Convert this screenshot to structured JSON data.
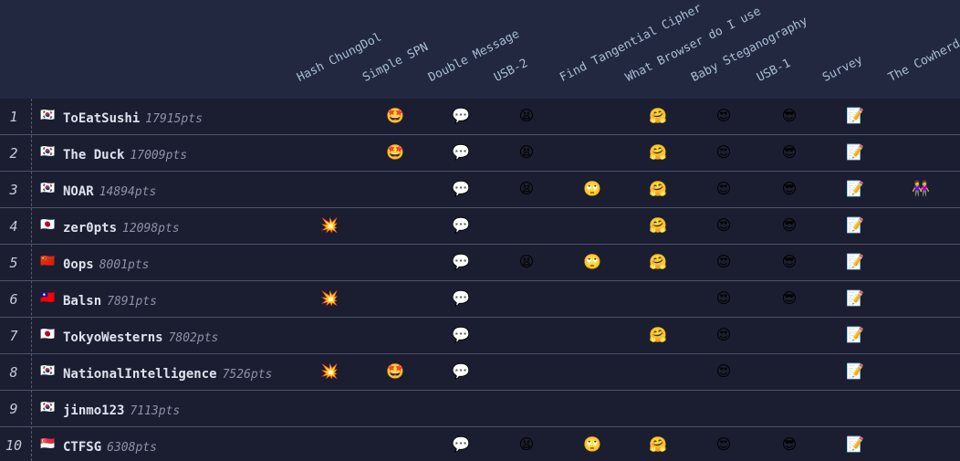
{
  "scoreboard": {
    "columns": [
      "Hash ChungDol",
      "Simple SPN",
      "Double Message",
      "USB-2",
      "Find Tangential Cipher",
      "What Browser do I use",
      "Baby Steganography",
      "USB-1",
      "Survey",
      "The Cowherd"
    ],
    "rows": [
      {
        "rank": "1",
        "flag": "🇰🇷",
        "name": "ToEatSushi",
        "points": "17915pts",
        "solves": [
          null,
          "🤩",
          "💬",
          "😫",
          null,
          "🤗",
          "😍",
          "😎",
          "📝",
          null
        ]
      },
      {
        "rank": "2",
        "flag": "🇰🇷",
        "name": "The Duck",
        "points": "17009pts",
        "solves": [
          null,
          "🤩",
          "💬",
          "😫",
          null,
          "🤗",
          "😍",
          "😎",
          "📝",
          null
        ]
      },
      {
        "rank": "3",
        "flag": "🇰🇷",
        "name": "NOAR",
        "points": "14894pts",
        "solves": [
          null,
          null,
          "💬",
          "😫",
          "🙄",
          "🤗",
          "😍",
          "😎",
          "📝",
          "👭"
        ]
      },
      {
        "rank": "4",
        "flag": "🇯🇵",
        "name": "zer0pts",
        "points": "12098pts",
        "solves": [
          "💥",
          null,
          "💬",
          null,
          null,
          "🤗",
          "😍",
          "😎",
          "📝",
          null
        ]
      },
      {
        "rank": "5",
        "flag": "🇨🇳",
        "name": "0ops",
        "points": "8001pts",
        "solves": [
          null,
          null,
          "💬",
          "😫",
          "🙄",
          "🤗",
          "😍",
          "😎",
          "📝",
          null
        ]
      },
      {
        "rank": "6",
        "flag": "🇹🇼",
        "name": "Balsn",
        "points": "7891pts",
        "solves": [
          "💥",
          null,
          "💬",
          null,
          null,
          null,
          "😍",
          "😎",
          "📝",
          null
        ]
      },
      {
        "rank": "7",
        "flag": "🇯🇵",
        "name": "TokyoWesterns",
        "points": "7802pts",
        "solves": [
          null,
          null,
          "💬",
          null,
          null,
          "🤗",
          "😍",
          null,
          "📝",
          null
        ]
      },
      {
        "rank": "8",
        "flag": "🇰🇷",
        "name": "NationalIntelligence",
        "points": "7526pts",
        "solves": [
          "💥",
          "🤩",
          "💬",
          null,
          null,
          null,
          "😍",
          null,
          "📝",
          null
        ]
      },
      {
        "rank": "9",
        "flag": "🇰🇷",
        "name": "jinmo123",
        "points": "7113pts",
        "solves": [
          null,
          null,
          null,
          null,
          null,
          null,
          null,
          null,
          null,
          null
        ]
      },
      {
        "rank": "10",
        "flag": "🇸🇬",
        "name": "CTFSG",
        "points": "6308pts",
        "solves": [
          null,
          null,
          "💬",
          "😫",
          "🙄",
          "🤗",
          "😍",
          "😎",
          "📝",
          null
        ]
      }
    ]
  }
}
